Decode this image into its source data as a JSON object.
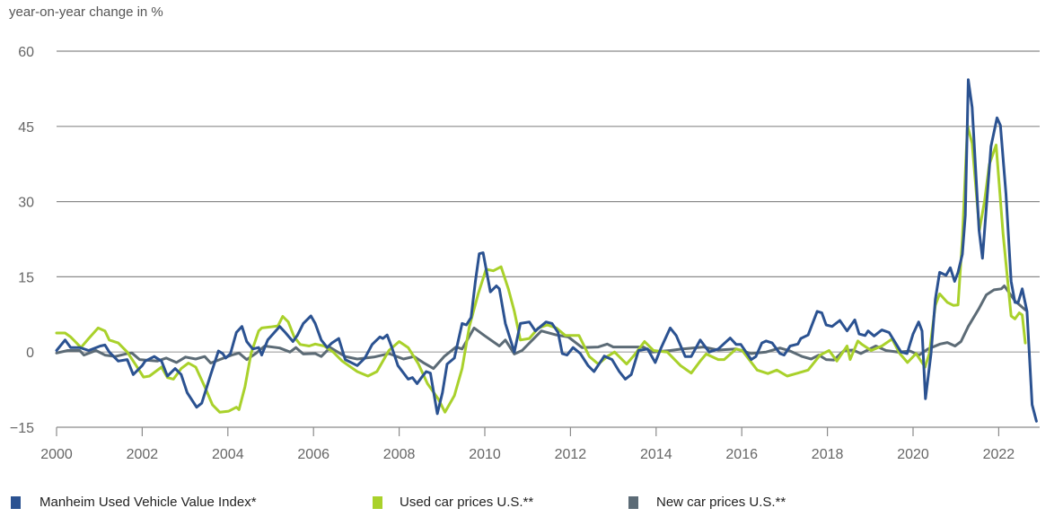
{
  "chart_data": {
    "type": "line",
    "title": "",
    "ylabel": "year-on-year change in %",
    "xlabel": "",
    "xlim": [
      2000,
      2023
    ],
    "ylim": [
      -15,
      60
    ],
    "yticks": [
      -15,
      0,
      15,
      30,
      45,
      60
    ],
    "ytick_labels": [
      "−15",
      "0",
      "15",
      "30",
      "45",
      "60"
    ],
    "xticks": [
      2000,
      2002,
      2004,
      2006,
      2008,
      2010,
      2012,
      2014,
      2016,
      2018,
      2020,
      2022
    ],
    "xtick_labels": [
      "2000",
      "2002",
      "2004",
      "2006",
      "2008",
      "2010",
      "2012",
      "2014",
      "2016",
      "2018",
      "2020",
      "2022"
    ],
    "grid": "horizontal",
    "legend_position": "bottom",
    "series": [
      {
        "name": "Manheim Used Vehicle Value Index*",
        "color": "#2b5291",
        "x": [
          2000.0,
          2000.2,
          2000.33,
          2000.54,
          2000.75,
          2001.02,
          2001.13,
          2001.23,
          2001.44,
          2001.65,
          2001.79,
          2002.0,
          2002.07,
          2002.28,
          2002.45,
          2002.59,
          2002.77,
          2002.91,
          2003.05,
          2003.27,
          2003.39,
          2003.6,
          2003.78,
          2003.88,
          2003.95,
          2004.06,
          2004.2,
          2004.33,
          2004.44,
          2004.58,
          2004.72,
          2004.79,
          2004.93,
          2005.21,
          2005.34,
          2005.52,
          2005.62,
          2005.76,
          2005.94,
          2006.04,
          2006.18,
          2006.32,
          2006.43,
          2006.59,
          2006.74,
          2007.02,
          2007.2,
          2007.37,
          2007.55,
          2007.62,
          2007.72,
          2007.83,
          2007.97,
          2008.21,
          2008.31,
          2008.42,
          2008.52,
          2008.63,
          2008.73,
          2008.89,
          2009.01,
          2009.12,
          2009.29,
          2009.47,
          2009.57,
          2009.68,
          2009.78,
          2009.87,
          2009.96,
          2010.13,
          2010.27,
          2010.34,
          2010.48,
          2010.69,
          2010.83,
          2011.04,
          2011.18,
          2011.43,
          2011.57,
          2011.71,
          2011.81,
          2011.92,
          2012.06,
          2012.23,
          2012.41,
          2012.55,
          2012.69,
          2012.79,
          2012.97,
          2013.14,
          2013.28,
          2013.42,
          2013.59,
          2013.8,
          2013.98,
          2014.12,
          2014.33,
          2014.47,
          2014.68,
          2014.82,
          2015.03,
          2015.24,
          2015.45,
          2015.73,
          2015.87,
          2015.98,
          2016.22,
          2016.33,
          2016.47,
          2016.57,
          2016.71,
          2016.89,
          2016.99,
          2017.13,
          2017.31,
          2017.38,
          2017.55,
          2017.76,
          2017.87,
          2017.97,
          2018.11,
          2018.29,
          2018.46,
          2018.64,
          2018.74,
          2018.88,
          2018.95,
          2019.09,
          2019.27,
          2019.44,
          2019.72,
          2019.86,
          2020.0,
          2020.13,
          2020.21,
          2020.29,
          2020.42,
          2020.52,
          2020.62,
          2020.77,
          2020.87,
          2020.97,
          2021.05,
          2021.15,
          2021.22,
          2021.29,
          2021.38,
          2021.54,
          2021.62,
          2021.82,
          2021.96,
          2022.04,
          2022.17,
          2022.29,
          2022.38,
          2022.45,
          2022.55,
          2022.66,
          2022.78,
          2022.88
        ],
        "values": [
          0.3,
          2.4,
          0.9,
          0.9,
          0.3,
          1.2,
          1.4,
          0,
          -1.8,
          -1.5,
          -4.5,
          -2.7,
          -1.8,
          -0.9,
          -1.8,
          -4.8,
          -3.3,
          -4.5,
          -8.1,
          -11,
          -10.2,
          -4.5,
          0.2,
          -0.3,
          -1.2,
          -0.3,
          3.9,
          5.1,
          2.1,
          0.6,
          0.9,
          -0.6,
          2.4,
          5.1,
          3.9,
          2.1,
          3.3,
          5.7,
          7.2,
          5.7,
          2.4,
          0.9,
          1.8,
          2.7,
          -1.5,
          -2.7,
          -1.2,
          1.5,
          3,
          2.7,
          3.4,
          0.9,
          -2.7,
          -5.4,
          -5.1,
          -6.3,
          -5.1,
          -3.9,
          -4.2,
          -12.3,
          -8.1,
          -2.4,
          -1.2,
          5.7,
          5.4,
          6.9,
          14.1,
          19.6,
          19.8,
          12,
          13.2,
          12.6,
          5.7,
          0,
          5.7,
          6,
          4.2,
          6,
          5.7,
          3.9,
          -0.3,
          -0.6,
          0.9,
          -0.3,
          -2.7,
          -3.9,
          -2.1,
          -0.8,
          -1.5,
          -3.9,
          -5.4,
          -4.5,
          0.3,
          0.6,
          -2.1,
          0.9,
          4.8,
          3.3,
          -0.9,
          -0.9,
          2.4,
          0,
          0.6,
          2.8,
          1.5,
          1.5,
          -1.5,
          -0.9,
          1.8,
          2.2,
          1.8,
          -0.3,
          -0.6,
          1.2,
          1.6,
          2.7,
          3.4,
          8.1,
          7.8,
          5.4,
          5.1,
          6.3,
          4.2,
          6.4,
          3.6,
          3.3,
          4.2,
          3.2,
          4.4,
          3.9,
          0,
          -0.3,
          3.6,
          6,
          4.2,
          -9.3,
          -0.3,
          10.5,
          15.9,
          15.3,
          16.8,
          14.1,
          15.9,
          19.5,
          27.3,
          54.3,
          48.8,
          24.3,
          18.7,
          41,
          46.7,
          45.2,
          31.5,
          14.1,
          9.9,
          9.8,
          12.6,
          8.1,
          -10.5,
          -13.8
        ]
      },
      {
        "name": "Used car prices U.S.**",
        "color": "#a9d12b",
        "x": [
          2000.0,
          2000.2,
          2000.33,
          2000.57,
          2000.75,
          2000.97,
          2001.13,
          2001.23,
          2001.44,
          2001.65,
          2001.86,
          2002.03,
          2002.17,
          2002.45,
          2002.59,
          2002.73,
          2002.91,
          2003.08,
          2003.25,
          2003.46,
          2003.64,
          2003.81,
          2004.02,
          2004.2,
          2004.26,
          2004.4,
          2004.54,
          2004.72,
          2004.79,
          2004.99,
          2005.17,
          2005.28,
          2005.41,
          2005.55,
          2005.69,
          2005.9,
          2006.04,
          2006.25,
          2006.46,
          2006.67,
          2007.02,
          2007.27,
          2007.48,
          2007.76,
          2008.0,
          2008.21,
          2008.45,
          2008.66,
          2008.91,
          2009.07,
          2009.29,
          2009.47,
          2009.64,
          2009.85,
          2010.03,
          2010.2,
          2010.38,
          2010.55,
          2010.69,
          2010.83,
          2011.04,
          2011.25,
          2011.46,
          2011.67,
          2011.88,
          2012.2,
          2012.44,
          2012.65,
          2012.86,
          2013.03,
          2013.31,
          2013.49,
          2013.73,
          2013.94,
          2014.26,
          2014.57,
          2014.82,
          2015.03,
          2015.17,
          2015.45,
          2015.59,
          2015.87,
          2016.01,
          2016.36,
          2016.61,
          2016.82,
          2017.06,
          2017.27,
          2017.55,
          2017.83,
          2018.04,
          2018.22,
          2018.46,
          2018.53,
          2018.71,
          2018.81,
          2019.02,
          2019.27,
          2019.51,
          2019.69,
          2019.87,
          2020.07,
          2020.28,
          2020.38,
          2020.52,
          2020.62,
          2020.8,
          2020.94,
          2021.05,
          2021.15,
          2021.27,
          2021.38,
          2021.55,
          2021.67,
          2021.78,
          2021.94,
          2022.1,
          2022.29,
          2022.38,
          2022.48,
          2022.55,
          2022.62
        ],
        "values": [
          3.8,
          3.8,
          3,
          0.9,
          2.7,
          4.8,
          4.2,
          2.4,
          1.8,
          0,
          -2.7,
          -5,
          -4.8,
          -3,
          -5.1,
          -5.4,
          -3.3,
          -2.2,
          -3,
          -6.9,
          -10.5,
          -12,
          -11.8,
          -11,
          -11.5,
          -6.9,
          -0.3,
          4.2,
          4.8,
          5,
          5.2,
          7.1,
          6,
          3,
          1.5,
          1.2,
          1.6,
          1.2,
          0,
          -1.8,
          -3.9,
          -4.8,
          -3.9,
          0.3,
          2.1,
          0.9,
          -2.4,
          -6.3,
          -9.3,
          -12,
          -8.7,
          -3.3,
          5.1,
          11.7,
          16.5,
          16.2,
          17,
          12.6,
          8.1,
          2.4,
          2.7,
          4.8,
          5.4,
          4.8,
          3.3,
          3.3,
          -0.9,
          -2.4,
          -0.9,
          0,
          -2.4,
          -0.6,
          2.1,
          0.3,
          0,
          -2.7,
          -4.2,
          -1.8,
          -0.4,
          -1.5,
          -1.5,
          0.6,
          0.3,
          -3.6,
          -4.3,
          -3.6,
          -4.8,
          -4.3,
          -3.6,
          -0.6,
          0.3,
          -1.8,
          1.2,
          -1.5,
          2.2,
          1.5,
          0.3,
          1.2,
          2.6,
          -0.3,
          -2.1,
          -0.3,
          -3,
          -0.3,
          9.3,
          11.6,
          9.9,
          9.3,
          9.4,
          22.5,
          45.2,
          41.6,
          24.3,
          30.2,
          37.4,
          41.3,
          23.7,
          7.2,
          6.6,
          7.8,
          7.4,
          1.8
        ]
      },
      {
        "name": "New car prices U.S.**",
        "color": "#5c6b76",
        "x": [
          2000.0,
          2000.26,
          2000.54,
          2000.64,
          2000.92,
          2001.13,
          2001.37,
          2001.65,
          2001.76,
          2001.94,
          2002.35,
          2002.56,
          2002.8,
          2003.01,
          2003.25,
          2003.46,
          2003.6,
          2003.81,
          2004.09,
          2004.26,
          2004.44,
          2004.65,
          2004.86,
          2005.21,
          2005.45,
          2005.59,
          2005.76,
          2006.04,
          2006.18,
          2006.39,
          2006.74,
          2007.02,
          2007.41,
          2007.76,
          2008.1,
          2008.35,
          2008.56,
          2008.8,
          2009.05,
          2009.33,
          2009.47,
          2009.75,
          2009.99,
          2010.34,
          2010.48,
          2010.69,
          2010.87,
          2011.32,
          2011.67,
          2011.95,
          2012.27,
          2012.65,
          2012.86,
          2013.0,
          2013.7,
          2013.91,
          2014.33,
          2014.61,
          2015.1,
          2015.45,
          2015.87,
          2016.22,
          2016.57,
          2016.89,
          2017.13,
          2017.41,
          2017.62,
          2017.8,
          2017.97,
          2018.15,
          2018.39,
          2018.6,
          2018.78,
          2019.13,
          2019.37,
          2019.65,
          2019.93,
          2020.14,
          2020.35,
          2020.63,
          2020.8,
          2020.98,
          2021.12,
          2021.29,
          2021.54,
          2021.71,
          2021.89,
          2022.06,
          2022.13,
          2022.38,
          2022.62
        ],
        "values": [
          -0.2,
          0.3,
          0.3,
          -0.6,
          0.3,
          -0.6,
          -0.9,
          -0.3,
          -0.2,
          -1.5,
          -1.8,
          -1.2,
          -2.1,
          -1,
          -1.4,
          -0.9,
          -2.2,
          -1.5,
          -0.6,
          -0.2,
          -1.5,
          -0.3,
          1.2,
          0.8,
          0,
          0.9,
          -0.4,
          -0.3,
          -0.9,
          0.9,
          -0.9,
          -1.4,
          -1,
          -0.3,
          -1.4,
          -0.9,
          -2.1,
          -3.3,
          -0.9,
          1,
          0.6,
          4.8,
          3.3,
          1.2,
          2.4,
          -0.4,
          0.3,
          4.2,
          3.4,
          3,
          0.9,
          1,
          1.6,
          1,
          1,
          0,
          0.3,
          0.6,
          1,
          0.4,
          0.6,
          -0.3,
          0,
          0.8,
          0.2,
          -0.9,
          -1.4,
          -0.6,
          -1.5,
          -1.6,
          0.3,
          0.4,
          -0.3,
          1.2,
          0.3,
          0,
          0.2,
          -0.6,
          0.6,
          1.6,
          1.9,
          1.2,
          2.1,
          5.1,
          8.7,
          11.4,
          12.4,
          12.6,
          13.2,
          10.2,
          8.4
        ]
      }
    ]
  }
}
